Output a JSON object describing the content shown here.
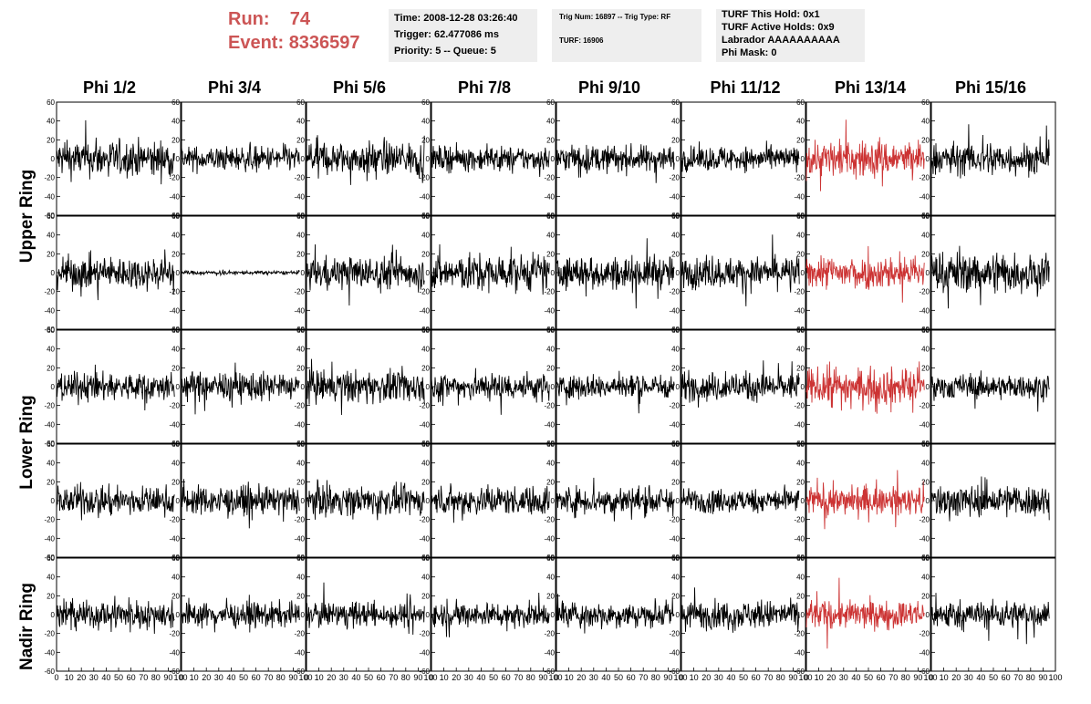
{
  "header": {
    "run_label": "Run:",
    "run_value": "74",
    "event_label": "Event:",
    "event_value": "8336597",
    "run_color": "#cc5555"
  },
  "info_time": {
    "time": "Time: 2008-12-28 03:26:40",
    "trigger": "Trigger: 62.477086 ms",
    "priority": "Priority: 5 -- Queue: 5"
  },
  "info_trig": {
    "trig": "Trig Num: 16897 -- Trig Type: RF",
    "turf": "TURF: 16906"
  },
  "info_turf": {
    "hold": "TURF This Hold: 0x1",
    "active": "TURF Active Holds: 0x9",
    "labrador": "Labrador AAAAAAAAAA",
    "phimask": "Phi Mask: 0"
  },
  "columns": [
    "Phi 1/2",
    "Phi 3/4",
    "Phi 5/6",
    "Phi 7/8",
    "Phi 9/10",
    "Phi 11/12",
    "Phi 13/14",
    "Phi 15/16"
  ],
  "rings": [
    "Upper Ring",
    "Lower Ring",
    "Nadir Ring"
  ],
  "chart_data": {
    "type": "line",
    "xlim": [
      0,
      100
    ],
    "ylim": [
      -60,
      60
    ],
    "y_ticks": [
      -60,
      -40,
      -20,
      0,
      20,
      40,
      60
    ],
    "x_tick_labels": [
      "0",
      "10",
      "20",
      "30",
      "40",
      "50",
      "60",
      "70",
      "80",
      "90",
      "100"
    ],
    "grid": false,
    "samples_per_trace": 260,
    "trace_color": "#000000",
    "highlight_color": "#cc3333",
    "highlight_column": 6,
    "rows": 5,
    "cols": 8,
    "amplitude_rows": [
      [
        18,
        12,
        16,
        12,
        13,
        12,
        18,
        16
      ],
      [
        16,
        2,
        16,
        18,
        16,
        15,
        16,
        20
      ],
      [
        14,
        14,
        16,
        14,
        12,
        14,
        18,
        12
      ],
      [
        14,
        14,
        14,
        14,
        14,
        12,
        14,
        16
      ],
      [
        14,
        12,
        12,
        12,
        12,
        14,
        14,
        14
      ]
    ]
  }
}
